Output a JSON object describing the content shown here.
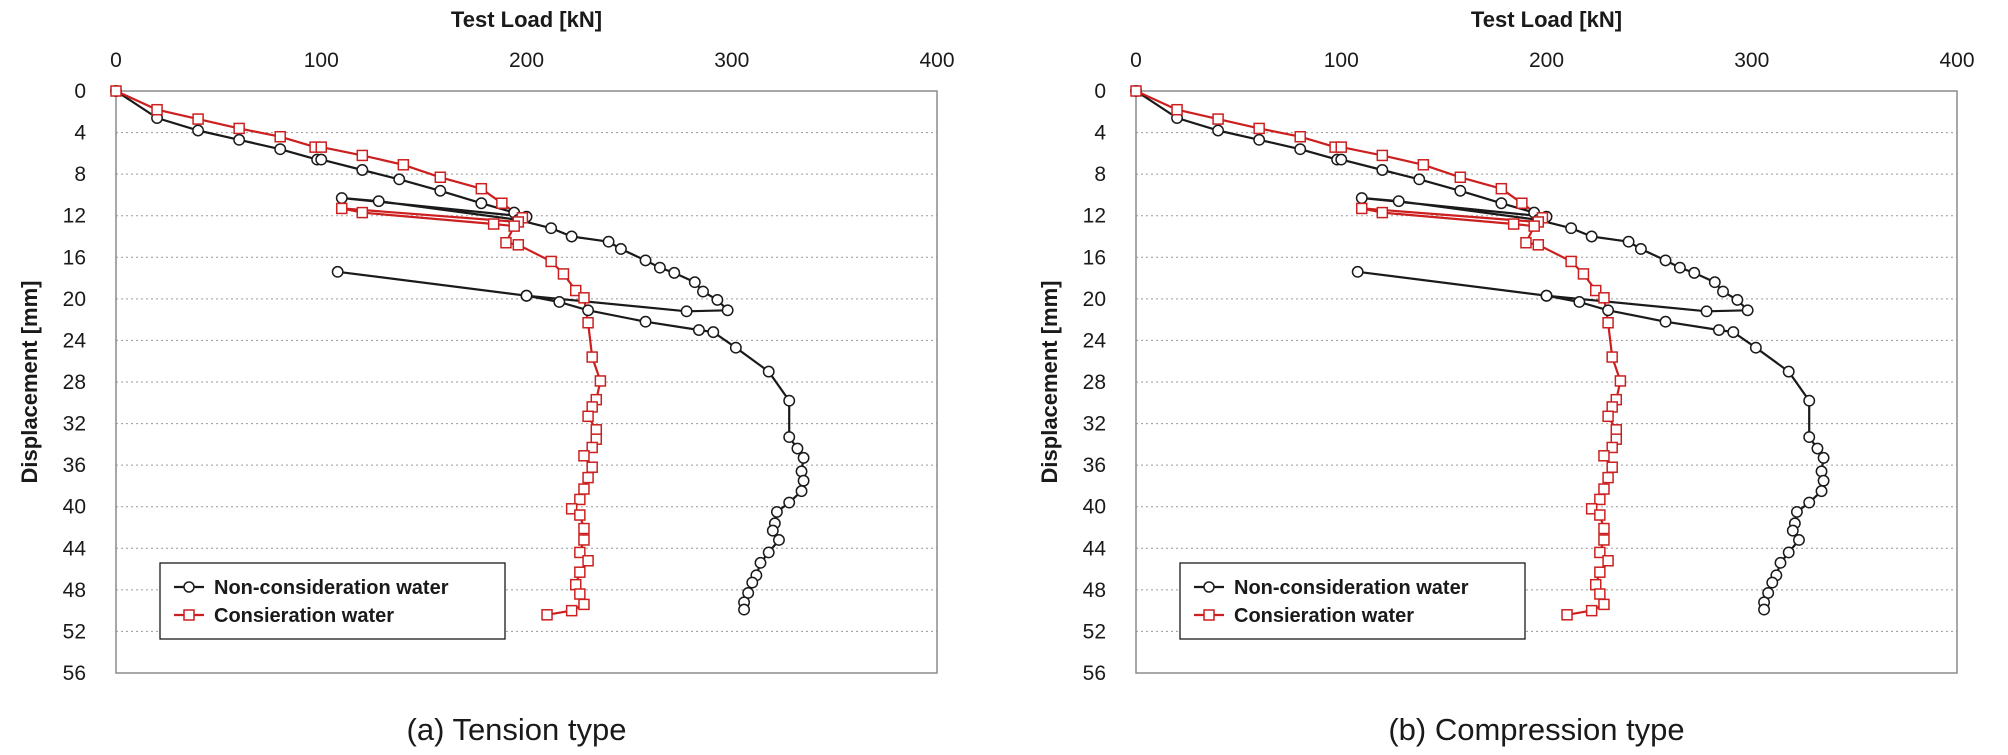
{
  "colors": {
    "series_a": "#1a1a1a",
    "series_b": "#cc1f1f",
    "grid": "#9a9a9a",
    "frame": "#8c8c8c"
  },
  "chart_data": [
    {
      "type": "line",
      "caption": "(a) Tension type",
      "xlabel": "Test Load [kN]",
      "ylabel": "Displacement [mm]",
      "xlim": [
        0,
        400
      ],
      "ylim": [
        0,
        56
      ],
      "xticks": [
        0,
        100,
        200,
        300,
        400
      ],
      "yticks": [
        0,
        4,
        8,
        12,
        16,
        20,
        24,
        28,
        32,
        36,
        40,
        44,
        48,
        52,
        56
      ],
      "x_axis_position": "top",
      "y_inverted": true,
      "legend": "bottom-left",
      "series": [
        {
          "name": "Non-consideration water",
          "color": "#1a1a1a",
          "marker": "circle",
          "points": [
            [
              0,
              0
            ],
            [
              20,
              2.6
            ],
            [
              40,
              3.8
            ],
            [
              60,
              4.7
            ],
            [
              80,
              5.6
            ],
            [
              98,
              6.6
            ],
            [
              100,
              6.6
            ],
            [
              120,
              7.6
            ],
            [
              138,
              8.5
            ],
            [
              158,
              9.6
            ],
            [
              178,
              10.8
            ],
            [
              194,
              11.7
            ],
            [
              200,
              12.1
            ],
            [
              110,
              10.3
            ],
            [
              128,
              10.6
            ],
            [
              196,
              12.4
            ],
            [
              212,
              13.2
            ],
            [
              222,
              14
            ],
            [
              240,
              14.5
            ],
            [
              246,
              15.2
            ],
            [
              258,
              16.3
            ],
            [
              265,
              17
            ],
            [
              272,
              17.5
            ],
            [
              282,
              18.4
            ],
            [
              286,
              19.3
            ],
            [
              293,
              20.1
            ],
            [
              298,
              21.1
            ],
            [
              278,
              21.2
            ],
            [
              200,
              19.7
            ],
            [
              108,
              17.4
            ],
            [
              200,
              19.7
            ],
            [
              216,
              20.3
            ],
            [
              230,
              21.1
            ],
            [
              258,
              22.2
            ],
            [
              284,
              23
            ],
            [
              291,
              23.2
            ],
            [
              302,
              24.7
            ],
            [
              318,
              27
            ],
            [
              328,
              29.8
            ],
            [
              328,
              33.3
            ],
            [
              332,
              34.4
            ],
            [
              335,
              35.3
            ],
            [
              334,
              36.6
            ],
            [
              335,
              37.5
            ],
            [
              334,
              38.5
            ],
            [
              328,
              39.6
            ],
            [
              322,
              40.5
            ],
            [
              321,
              41.6
            ],
            [
              320,
              42.3
            ],
            [
              323,
              43.2
            ],
            [
              318,
              44.4
            ],
            [
              314,
              45.4
            ],
            [
              312,
              46.6
            ],
            [
              310,
              47.3
            ],
            [
              308,
              48.3
            ],
            [
              306,
              49.2
            ],
            [
              306,
              49.9
            ]
          ]
        },
        {
          "name": "Consieration water",
          "color": "#cc1f1f",
          "marker": "square",
          "points": [
            [
              0,
              0
            ],
            [
              20,
              1.8
            ],
            [
              40,
              2.7
            ],
            [
              60,
              3.6
            ],
            [
              80,
              4.4
            ],
            [
              97,
              5.4
            ],
            [
              100,
              5.4
            ],
            [
              120,
              6.2
            ],
            [
              140,
              7.1
            ],
            [
              158,
              8.3
            ],
            [
              178,
              9.4
            ],
            [
              188,
              10.8
            ],
            [
              198,
              12.2
            ],
            [
              196,
              12.6
            ],
            [
              110,
              11.3
            ],
            [
              120,
              11.7
            ],
            [
              184,
              12.8
            ],
            [
              194,
              13
            ],
            [
              190,
              14.6
            ],
            [
              196,
              14.8
            ],
            [
              212,
              16.4
            ],
            [
              218,
              17.6
            ],
            [
              224,
              19.2
            ],
            [
              228,
              19.9
            ],
            [
              230,
              22.3
            ],
            [
              232,
              25.6
            ],
            [
              236,
              27.9
            ],
            [
              234,
              29.7
            ],
            [
              232,
              30.4
            ],
            [
              230,
              31.3
            ],
            [
              234,
              32.6
            ],
            [
              234,
              33.5
            ],
            [
              232,
              34.3
            ],
            [
              228,
              35.1
            ],
            [
              232,
              36.2
            ],
            [
              230,
              37.2
            ],
            [
              228,
              38.3
            ],
            [
              226,
              39.3
            ],
            [
              222,
              40.2
            ],
            [
              226,
              40.8
            ],
            [
              228,
              42.1
            ],
            [
              228,
              43.2
            ],
            [
              226,
              44.4
            ],
            [
              230,
              45.2
            ],
            [
              226,
              46.3
            ],
            [
              224,
              47.5
            ],
            [
              226,
              48.4
            ],
            [
              228,
              49.4
            ],
            [
              222,
              50
            ],
            [
              210,
              50.4
            ]
          ]
        }
      ]
    },
    {
      "type": "line",
      "caption": "(b) Compression type",
      "xlabel": "Test Load [kN]",
      "ylabel": "Displacement [mm]",
      "xlim": [
        0,
        400
      ],
      "ylim": [
        0,
        56
      ],
      "xticks": [
        0,
        100,
        200,
        300,
        400
      ],
      "yticks": [
        0,
        4,
        8,
        12,
        16,
        20,
        24,
        28,
        32,
        36,
        40,
        44,
        48,
        52,
        56
      ],
      "x_axis_position": "top",
      "y_inverted": true,
      "legend": "bottom-left",
      "series": [
        {
          "name": "Non-consideration water",
          "color": "#1a1a1a",
          "marker": "circle",
          "points": [
            [
              0,
              0
            ],
            [
              20,
              2.6
            ],
            [
              40,
              3.8
            ],
            [
              60,
              4.7
            ],
            [
              80,
              5.6
            ],
            [
              98,
              6.6
            ],
            [
              100,
              6.6
            ],
            [
              120,
              7.6
            ],
            [
              138,
              8.5
            ],
            [
              158,
              9.6
            ],
            [
              178,
              10.8
            ],
            [
              194,
              11.7
            ],
            [
              200,
              12.1
            ],
            [
              110,
              10.3
            ],
            [
              128,
              10.6
            ],
            [
              196,
              12.4
            ],
            [
              212,
              13.2
            ],
            [
              222,
              14
            ],
            [
              240,
              14.5
            ],
            [
              246,
              15.2
            ],
            [
              258,
              16.3
            ],
            [
              265,
              17
            ],
            [
              272,
              17.5
            ],
            [
              282,
              18.4
            ],
            [
              286,
              19.3
            ],
            [
              293,
              20.1
            ],
            [
              298,
              21.1
            ],
            [
              278,
              21.2
            ],
            [
              200,
              19.7
            ],
            [
              108,
              17.4
            ],
            [
              200,
              19.7
            ],
            [
              216,
              20.3
            ],
            [
              230,
              21.1
            ],
            [
              258,
              22.2
            ],
            [
              284,
              23
            ],
            [
              291,
              23.2
            ],
            [
              302,
              24.7
            ],
            [
              318,
              27
            ],
            [
              328,
              29.8
            ],
            [
              328,
              33.3
            ],
            [
              332,
              34.4
            ],
            [
              335,
              35.3
            ],
            [
              334,
              36.6
            ],
            [
              335,
              37.5
            ],
            [
              334,
              38.5
            ],
            [
              328,
              39.6
            ],
            [
              322,
              40.5
            ],
            [
              321,
              41.6
            ],
            [
              320,
              42.3
            ],
            [
              323,
              43.2
            ],
            [
              318,
              44.4
            ],
            [
              314,
              45.4
            ],
            [
              312,
              46.6
            ],
            [
              310,
              47.3
            ],
            [
              308,
              48.3
            ],
            [
              306,
              49.2
            ],
            [
              306,
              49.9
            ]
          ]
        },
        {
          "name": "Consieration water",
          "color": "#cc1f1f",
          "marker": "square",
          "points": [
            [
              0,
              0
            ],
            [
              20,
              1.8
            ],
            [
              40,
              2.7
            ],
            [
              60,
              3.6
            ],
            [
              80,
              4.4
            ],
            [
              97,
              5.4
            ],
            [
              100,
              5.4
            ],
            [
              120,
              6.2
            ],
            [
              140,
              7.1
            ],
            [
              158,
              8.3
            ],
            [
              178,
              9.4
            ],
            [
              188,
              10.8
            ],
            [
              198,
              12.2
            ],
            [
              196,
              12.6
            ],
            [
              110,
              11.3
            ],
            [
              120,
              11.7
            ],
            [
              184,
              12.8
            ],
            [
              194,
              13
            ],
            [
              190,
              14.6
            ],
            [
              196,
              14.8
            ],
            [
              212,
              16.4
            ],
            [
              218,
              17.6
            ],
            [
              224,
              19.2
            ],
            [
              228,
              19.9
            ],
            [
              230,
              22.3
            ],
            [
              232,
              25.6
            ],
            [
              236,
              27.9
            ],
            [
              234,
              29.7
            ],
            [
              232,
              30.4
            ],
            [
              230,
              31.3
            ],
            [
              234,
              32.6
            ],
            [
              234,
              33.5
            ],
            [
              232,
              34.3
            ],
            [
              228,
              35.1
            ],
            [
              232,
              36.2
            ],
            [
              230,
              37.2
            ],
            [
              228,
              38.3
            ],
            [
              226,
              39.3
            ],
            [
              222,
              40.2
            ],
            [
              226,
              40.8
            ],
            [
              228,
              42.1
            ],
            [
              228,
              43.2
            ],
            [
              226,
              44.4
            ],
            [
              230,
              45.2
            ],
            [
              226,
              46.3
            ],
            [
              224,
              47.5
            ],
            [
              226,
              48.4
            ],
            [
              228,
              49.4
            ],
            [
              222,
              50
            ],
            [
              210,
              50.4
            ]
          ]
        }
      ]
    }
  ]
}
